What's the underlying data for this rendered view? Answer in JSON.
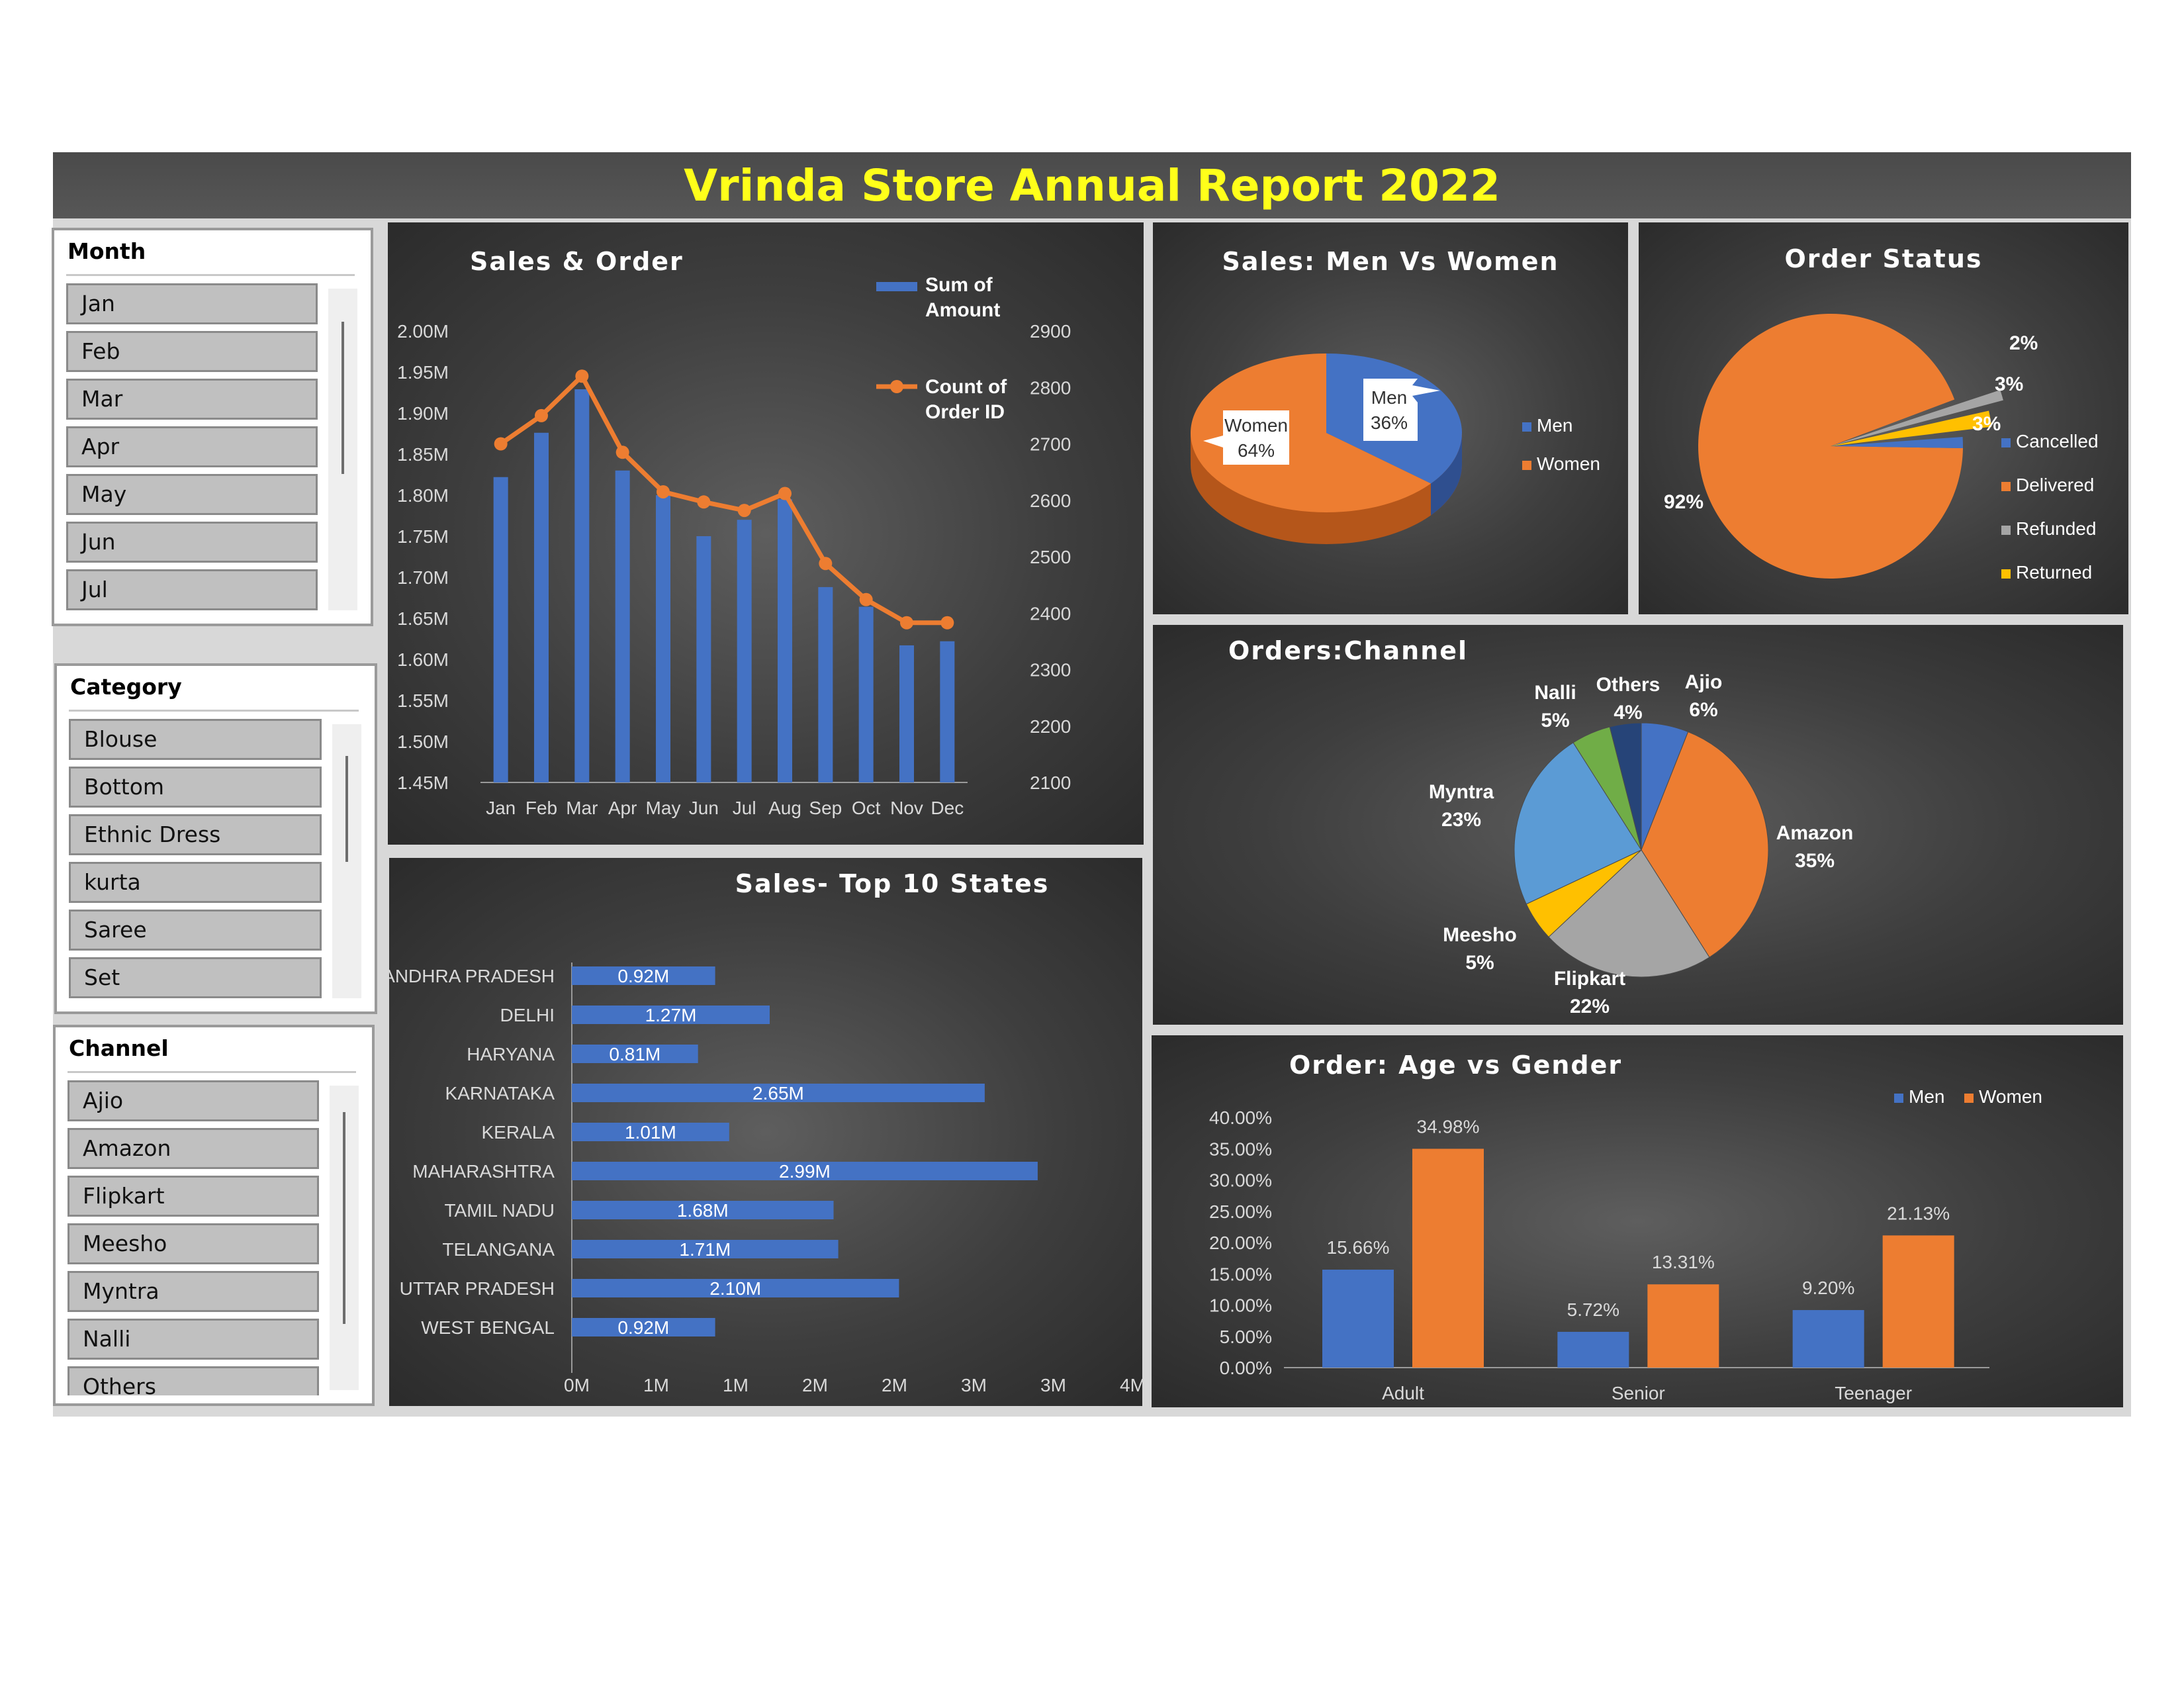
{
  "report_title": "Vrinda Store Annual Report 2022",
  "slicers": {
    "month": {
      "title": "Month",
      "items": [
        "Jan",
        "Feb",
        "Mar",
        "Apr",
        "May",
        "Jun",
        "Jul"
      ]
    },
    "category": {
      "title": "Category",
      "items": [
        "Blouse",
        "Bottom",
        "Ethnic Dress",
        "kurta",
        "Saree",
        "Set"
      ]
    },
    "channel": {
      "title": "Channel",
      "items": [
        "Ajio",
        "Amazon",
        "Flipkart",
        "Meesho",
        "Myntra",
        "Nalli",
        "Others"
      ]
    }
  },
  "colors": {
    "blue": "#4472c4",
    "orange": "#ed7d31",
    "gray": "#a5a5a5",
    "yellow": "#ffc000",
    "green": "#70ad47",
    "light_blue": "#5b9bd5",
    "navy": "#264478",
    "title_yellow": "#ffff1a"
  },
  "chart_data": [
    {
      "id": "sales_order",
      "type": "bar",
      "title": "Sales & Order",
      "categories": [
        "Jan",
        "Feb",
        "Mar",
        "Apr",
        "May",
        "Jun",
        "Jul",
        "Aug",
        "Sep",
        "Oct",
        "Nov",
        "Dec"
      ],
      "series": [
        {
          "name": "Sum of Amount",
          "type": "bar",
          "axis": "left",
          "values": [
            1822000,
            1876000,
            1929000,
            1830000,
            1800000,
            1750000,
            1770000,
            1795000,
            1688000,
            1664000,
            1617000,
            1622000
          ]
        },
        {
          "name": "Count of Order ID",
          "type": "line",
          "axis": "right",
          "values": [
            2700,
            2750,
            2820,
            2685,
            2615,
            2597,
            2582,
            2612,
            2488,
            2424,
            2383,
            2383
          ]
        }
      ],
      "legend": [
        "Sum of",
        "Amount",
        "Count of",
        "Order ID"
      ],
      "y_left": {
        "ylim": [
          1450000,
          2000000
        ],
        "ticks": [
          "2.00M",
          "1.95M",
          "1.90M",
          "1.85M",
          "1.80M",
          "1.75M",
          "1.70M",
          "1.65M",
          "1.60M",
          "1.55M",
          "1.50M",
          "1.45M"
        ]
      },
      "y_right": {
        "ylim": [
          2100,
          2900
        ],
        "ticks": [
          "2900",
          "2800",
          "2700",
          "2600",
          "2500",
          "2400",
          "2300",
          "2200",
          "2100"
        ]
      }
    },
    {
      "id": "men_women",
      "type": "pie",
      "title": "Sales: Men Vs Women",
      "slices": [
        {
          "name": "Men",
          "value": 36,
          "label": [
            "Men",
            "36%"
          ]
        },
        {
          "name": "Women",
          "value": 64,
          "label": [
            "Women",
            "64%"
          ]
        }
      ],
      "legend": [
        "Men",
        "Women"
      ]
    },
    {
      "id": "order_status",
      "type": "pie",
      "title": "Order Status",
      "slices": [
        {
          "name": "Cancelled",
          "value": 3,
          "label": "3%"
        },
        {
          "name": "Delivered",
          "value": 92,
          "label": "92%"
        },
        {
          "name": "Refunded",
          "value": 2,
          "label": "2%"
        },
        {
          "name": "Returned",
          "value": 3,
          "label": "3%"
        }
      ],
      "legend": [
        "Cancelled",
        "Delivered",
        "Refunded",
        "Returned"
      ]
    },
    {
      "id": "top_states",
      "type": "bar",
      "orientation": "horizontal",
      "title": "Sales- Top 10 States",
      "categories": [
        "ANDHRA PRADESH",
        "DELHI",
        "HARYANA",
        "KARNATAKA",
        "KERALA",
        "MAHARASHTRA",
        "TAMIL NADU",
        "TELANGANA",
        "UTTAR PRADESH",
        "WEST BENGAL"
      ],
      "values": [
        0.92,
        1.27,
        0.81,
        2.65,
        1.01,
        2.99,
        1.68,
        1.71,
        2.1,
        0.92
      ],
      "data_labels": [
        "0.92M",
        "1.27M",
        "0.81M",
        "2.65M",
        "1.01M",
        "2.99M",
        "1.68M",
        "1.71M",
        "2.10M",
        "0.92M"
      ],
      "x_ticks": [
        "0M",
        "1M",
        "1M",
        "2M",
        "2M",
        "3M",
        "3M",
        "4M"
      ],
      "xlim": [
        0,
        3.5
      ]
    },
    {
      "id": "channels",
      "type": "pie",
      "title": "Orders:Channel",
      "slices": [
        {
          "name": "Ajio",
          "value": 6,
          "label": [
            "Ajio",
            "6%"
          ]
        },
        {
          "name": "Amazon",
          "value": 35,
          "label": [
            "Amazon",
            "35%"
          ]
        },
        {
          "name": "Flipkart",
          "value": 22,
          "label": [
            "Flipkart",
            "22%"
          ]
        },
        {
          "name": "Meesho",
          "value": 5,
          "label": [
            "Meesho",
            "5%"
          ]
        },
        {
          "name": "Myntra",
          "value": 23,
          "label": [
            "Myntra",
            "23%"
          ]
        },
        {
          "name": "Nalli",
          "value": 5,
          "label": [
            "Nalli",
            "5%"
          ]
        },
        {
          "name": "Others",
          "value": 4,
          "label": [
            "Others",
            "4%"
          ]
        }
      ]
    },
    {
      "id": "age_gender",
      "type": "bar",
      "title": "Order: Age vs Gender",
      "categories": [
        "Adult",
        "Senior",
        "Teenager"
      ],
      "series": [
        {
          "name": "Men",
          "values": [
            15.66,
            5.72,
            9.2
          ],
          "labels": [
            "15.66%",
            "5.72%",
            "9.20%"
          ]
        },
        {
          "name": "Women",
          "values": [
            34.98,
            13.31,
            21.13
          ],
          "labels": [
            "34.98%",
            "13.31%",
            "21.13%"
          ]
        }
      ],
      "ylim": [
        0,
        40
      ],
      "y_ticks": [
        "40.00%",
        "35.00%",
        "30.00%",
        "25.00%",
        "20.00%",
        "15.00%",
        "10.00%",
        "5.00%",
        "0.00%"
      ],
      "legend": [
        "Men",
        "Women"
      ]
    }
  ]
}
